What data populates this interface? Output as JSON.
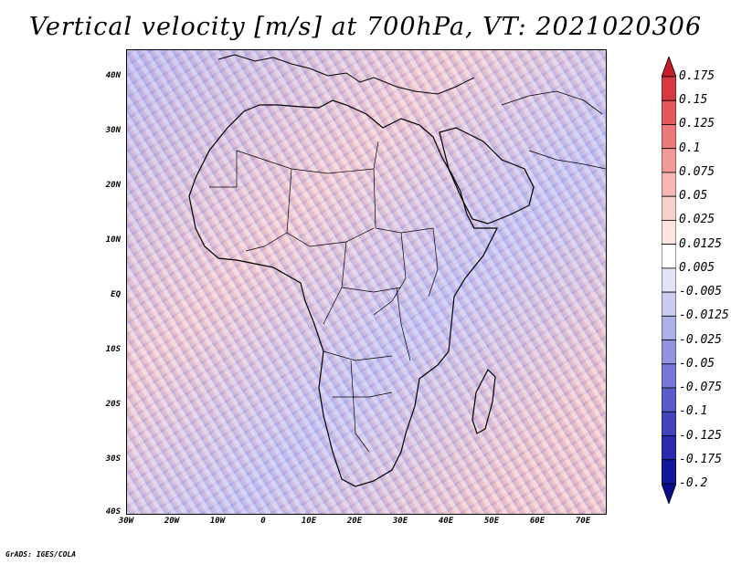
{
  "title": "Vertical velocity [m/s] at 700hPa, VT: 2021020306",
  "footer": "GrADS: IGES/COLA",
  "map": {
    "region": "Africa",
    "lat_range": [
      -40,
      45
    ],
    "lon_range": [
      -30,
      75
    ],
    "lat_labels": [
      "40N",
      "30N",
      "20N",
      "10N",
      "EQ",
      "10S",
      "20S",
      "30S",
      "40S"
    ],
    "lat_values": [
      40,
      30,
      20,
      10,
      0,
      -10,
      -20,
      -30,
      -40
    ],
    "lon_labels": [
      "30W",
      "20W",
      "10W",
      "0",
      "10E",
      "20E",
      "30E",
      "40E",
      "50E",
      "60E",
      "70E"
    ],
    "lon_values": [
      -30,
      -20,
      -10,
      0,
      10,
      20,
      30,
      40,
      50,
      60,
      70
    ]
  },
  "colorbar": {
    "labels": [
      "0.175",
      "0.15",
      "0.125",
      "0.1",
      "0.075",
      "0.05",
      "0.025",
      "0.0125",
      "0.005",
      "-0.005",
      "-0.0125",
      "-0.025",
      "-0.05",
      "-0.075",
      "-0.1",
      "-0.125",
      "-0.175",
      "-0.2"
    ],
    "colors": [
      "#c41e26",
      "#d63a3f",
      "#e4585a",
      "#ec7a78",
      "#f29a96",
      "#f6b7b2",
      "#f9cfcb",
      "#fce4e1",
      "#ffffff",
      "#e2e3f7",
      "#c9cbf0",
      "#aeb1e8",
      "#9294e0",
      "#7677d6",
      "#5b5ccc",
      "#4243bf",
      "#2a2bb0",
      "#14169c",
      "#0a0c8a"
    ]
  }
}
